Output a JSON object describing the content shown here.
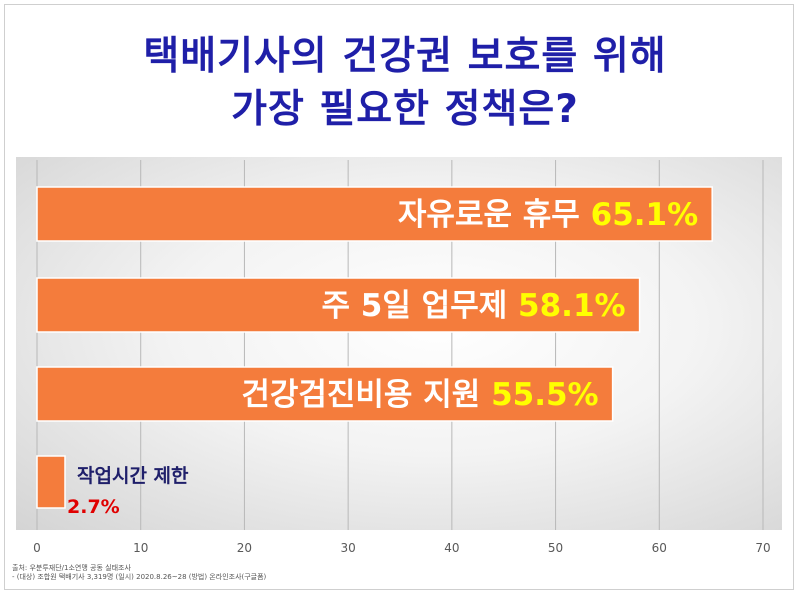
{
  "title": {
    "line1": "택배기사의 건강권 보호를 위해",
    "line2": "가장 필요한 정책은?"
  },
  "colors": {
    "title": "#1f1fa8",
    "bar": "#f47c3c",
    "value_label": "#ffff00",
    "small_value": "#e00000",
    "small_label": "#1f1f6a"
  },
  "chart_data": {
    "type": "bar",
    "orientation": "horizontal",
    "categories": [
      "자유로운 휴무",
      "주 5일 업무제",
      "건강검진비용 지원",
      "작업시간 제한"
    ],
    "values": [
      65.1,
      58.1,
      55.5,
      2.7
    ],
    "value_labels": [
      "65.1%",
      "58.1%",
      "55.5%",
      "2.7%"
    ],
    "xlim": [
      0,
      70
    ],
    "xticks": [
      0,
      10,
      20,
      30,
      40,
      50,
      60,
      70
    ],
    "grid": true,
    "xlabel": "",
    "ylabel": ""
  },
  "source": {
    "line1": "출처: 우분투재단/1소연맹 공동 실태조사",
    "line2": "- (대상) 조합원 택배기사 3,319명 (일시) 2020.8.26~28 (방법) 온라인조사(구글폼)"
  }
}
